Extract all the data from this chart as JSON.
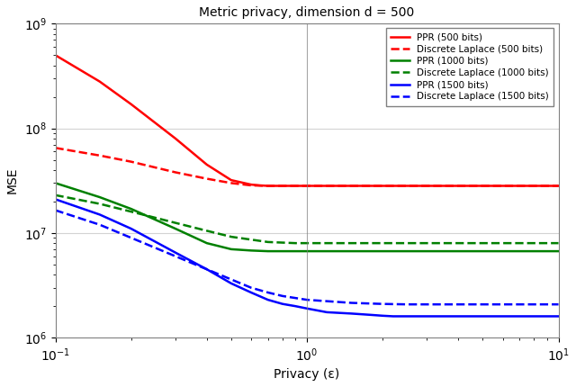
{
  "title": "Metric privacy, dimension d = 500",
  "xlabel": "Privacy (ε)",
  "ylabel": "MSE",
  "xlim": [
    0.1,
    10
  ],
  "ylim": [
    1000000.0,
    1000000000.0
  ],
  "colors": {
    "red": "#ff0000",
    "green": "#008000",
    "blue": "#0000ff"
  },
  "legend_entries": [
    "PPR (500 bits)",
    "Discrete Laplace (500 bits)",
    "PPR (1000 bits)",
    "Discrete Laplace (1000 bits)",
    "PPR (1500 bits)",
    "Discrete Laplace (1500 bits)"
  ],
  "ppr_500": {
    "x": [
      0.1,
      0.15,
      0.2,
      0.3,
      0.4,
      0.5,
      0.6,
      0.65,
      0.7,
      10.0
    ],
    "y": [
      500000000.0,
      280000000.0,
      170000000.0,
      80000000.0,
      45000000.0,
      32000000.0,
      29000000.0,
      28500000.0,
      28200000.0,
      28200000.0
    ]
  },
  "dl_500": {
    "x": [
      0.1,
      0.15,
      0.2,
      0.3,
      0.4,
      0.5,
      0.6,
      0.7,
      10.0
    ],
    "y": [
      65000000.0,
      55000000.0,
      48000000.0,
      38000000.0,
      33000000.0,
      30000000.0,
      28500000.0,
      28200000.0,
      28200000.0
    ]
  },
  "ppr_1000": {
    "x": [
      0.1,
      0.15,
      0.2,
      0.3,
      0.4,
      0.5,
      0.6,
      0.7,
      0.75,
      0.85,
      1.0,
      10.0
    ],
    "y": [
      30000000.0,
      22000000.0,
      17000000.0,
      11000000.0,
      8000000.0,
      7000000.0,
      6800000.0,
      6700000.0,
      6700000.0,
      6700000.0,
      6700000.0,
      6700000.0
    ]
  },
  "dl_1000": {
    "x": [
      0.1,
      0.15,
      0.2,
      0.3,
      0.4,
      0.5,
      0.7,
      0.9,
      1.0,
      10.0
    ],
    "y": [
      23000000.0,
      19000000.0,
      16000000.0,
      12500000.0,
      10500000.0,
      9200000.0,
      8200000.0,
      8000000.0,
      8000000.0,
      8000000.0
    ]
  },
  "ppr_1500": {
    "x": [
      0.1,
      0.15,
      0.2,
      0.3,
      0.4,
      0.5,
      0.6,
      0.7,
      0.8,
      0.9,
      1.0,
      1.2,
      1.5,
      1.8,
      2.0,
      2.2,
      10.0
    ],
    "y": [
      21000000.0,
      15000000.0,
      11000000.0,
      6500000.0,
      4500000.0,
      3300000.0,
      2700000.0,
      2300000.0,
      2100000.0,
      2000000.0,
      1900000.0,
      1750000.0,
      1700000.0,
      1650000.0,
      1620000.0,
      1600000.0,
      1600000.0
    ]
  },
  "dl_1500": {
    "x": [
      0.1,
      0.15,
      0.2,
      0.3,
      0.4,
      0.5,
      0.6,
      0.7,
      0.8,
      1.0,
      1.5,
      2.0,
      2.5,
      10.0
    ],
    "y": [
      16500000.0,
      12000000.0,
      9000000.0,
      6000000.0,
      4500000.0,
      3600000.0,
      3000000.0,
      2700000.0,
      2500000.0,
      2300000.0,
      2150000.0,
      2100000.0,
      2080000.0,
      2080000.0
    ]
  },
  "vline_x": 1.0
}
